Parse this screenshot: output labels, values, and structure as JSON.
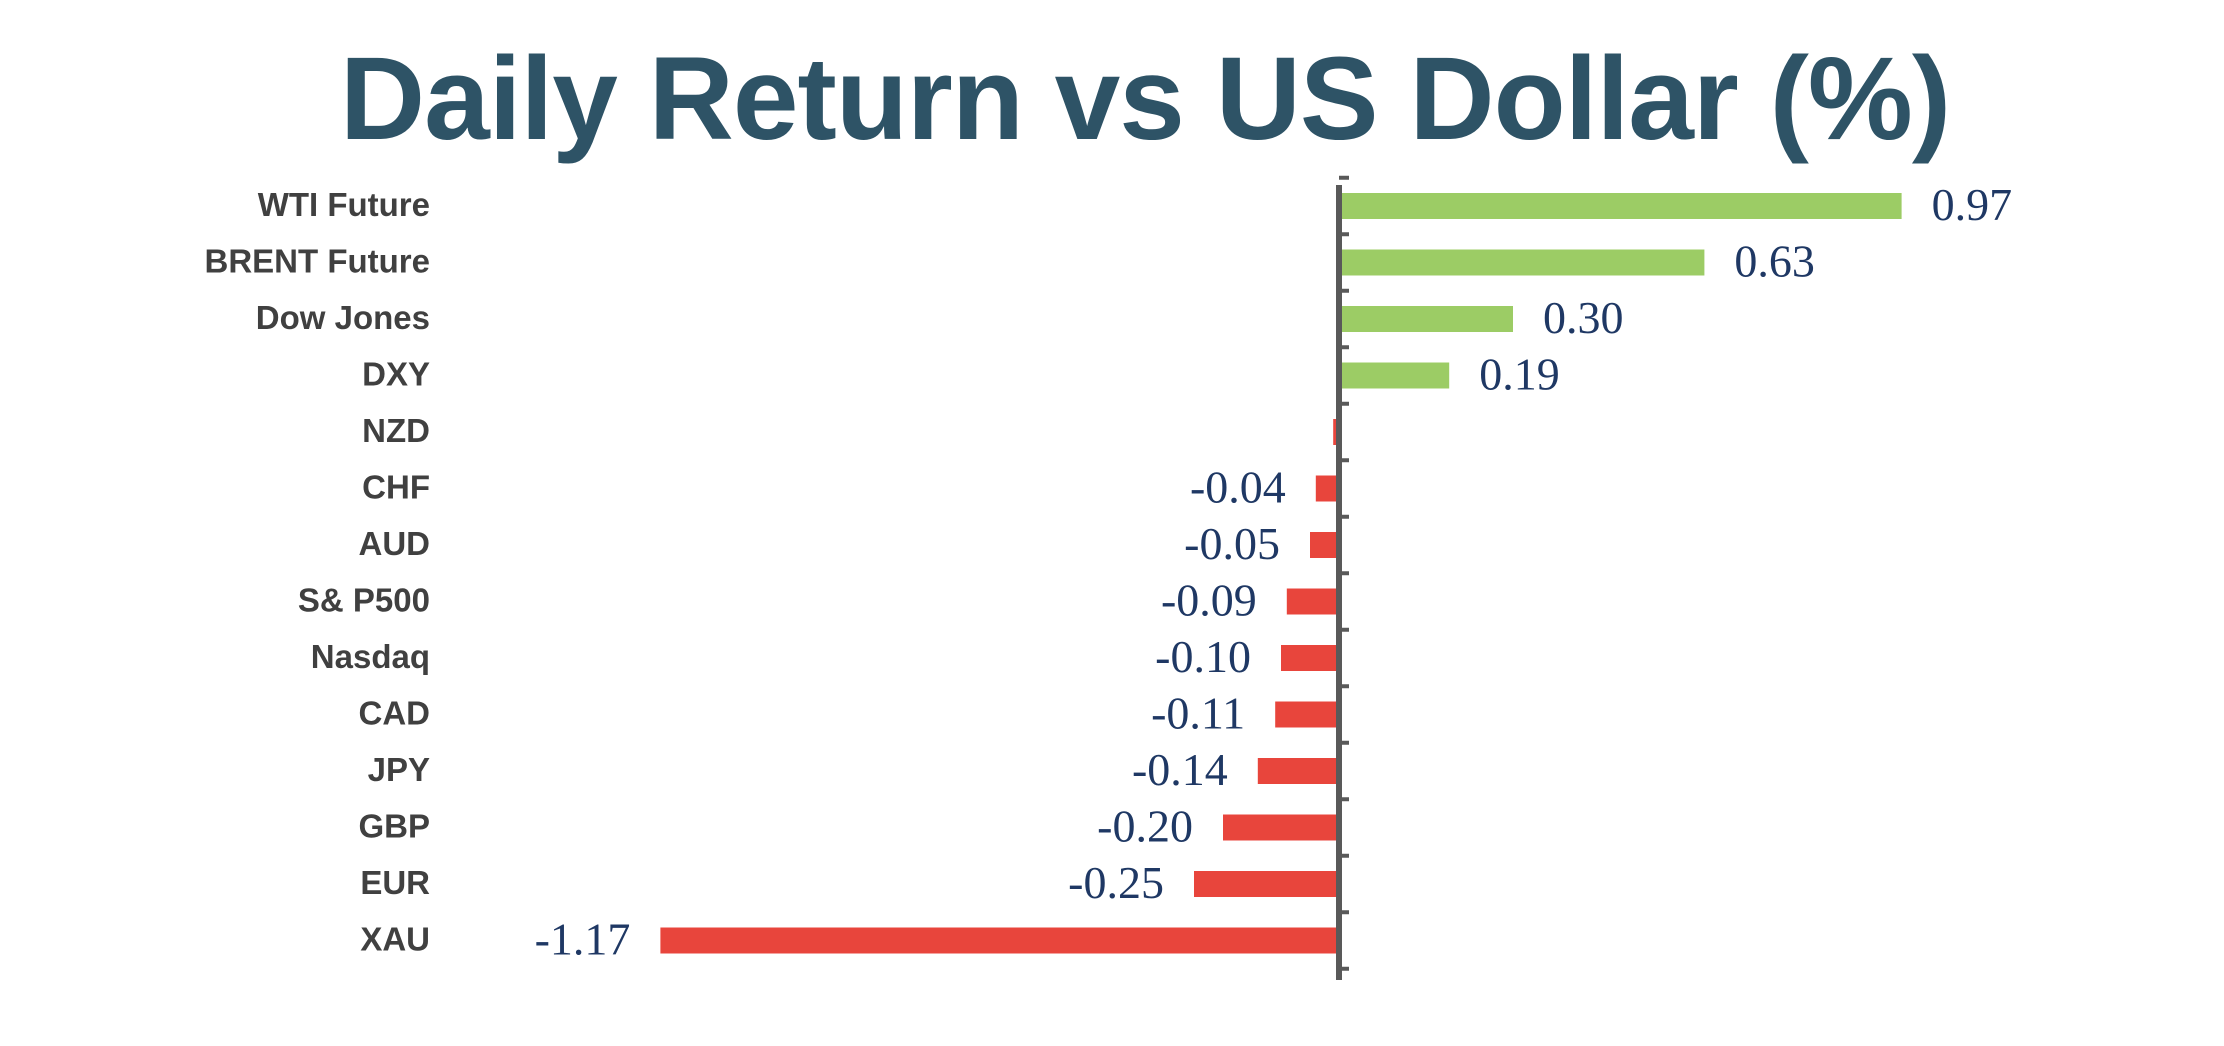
{
  "chart_data": {
    "type": "bar",
    "orientation": "horizontal",
    "title": "Daily Return vs US Dollar (%)",
    "categories": [
      "WTI Future",
      "BRENT Future",
      "Dow Jones",
      "DXY",
      "NZD",
      "CHF",
      "AUD",
      "S& P500",
      "Nasdaq",
      "CAD",
      "JPY",
      "GBP",
      "EUR",
      "XAU"
    ],
    "values": [
      0.97,
      0.63,
      0.3,
      0.19,
      -0.01,
      -0.04,
      -0.05,
      -0.09,
      -0.1,
      -0.11,
      -0.14,
      -0.2,
      -0.25,
      -1.17
    ],
    "data_labels": [
      "0.97",
      "0.63",
      "0.30",
      "0.19",
      "",
      "-0.04",
      "-0.05",
      "-0.09",
      "-0.10",
      "-0.11",
      "-0.14",
      "-0.20",
      "-0.25",
      "-1.17"
    ],
    "positive_color": "#9ccc65",
    "negative_color": "#e8453c",
    "grid": false,
    "legend": "none"
  }
}
